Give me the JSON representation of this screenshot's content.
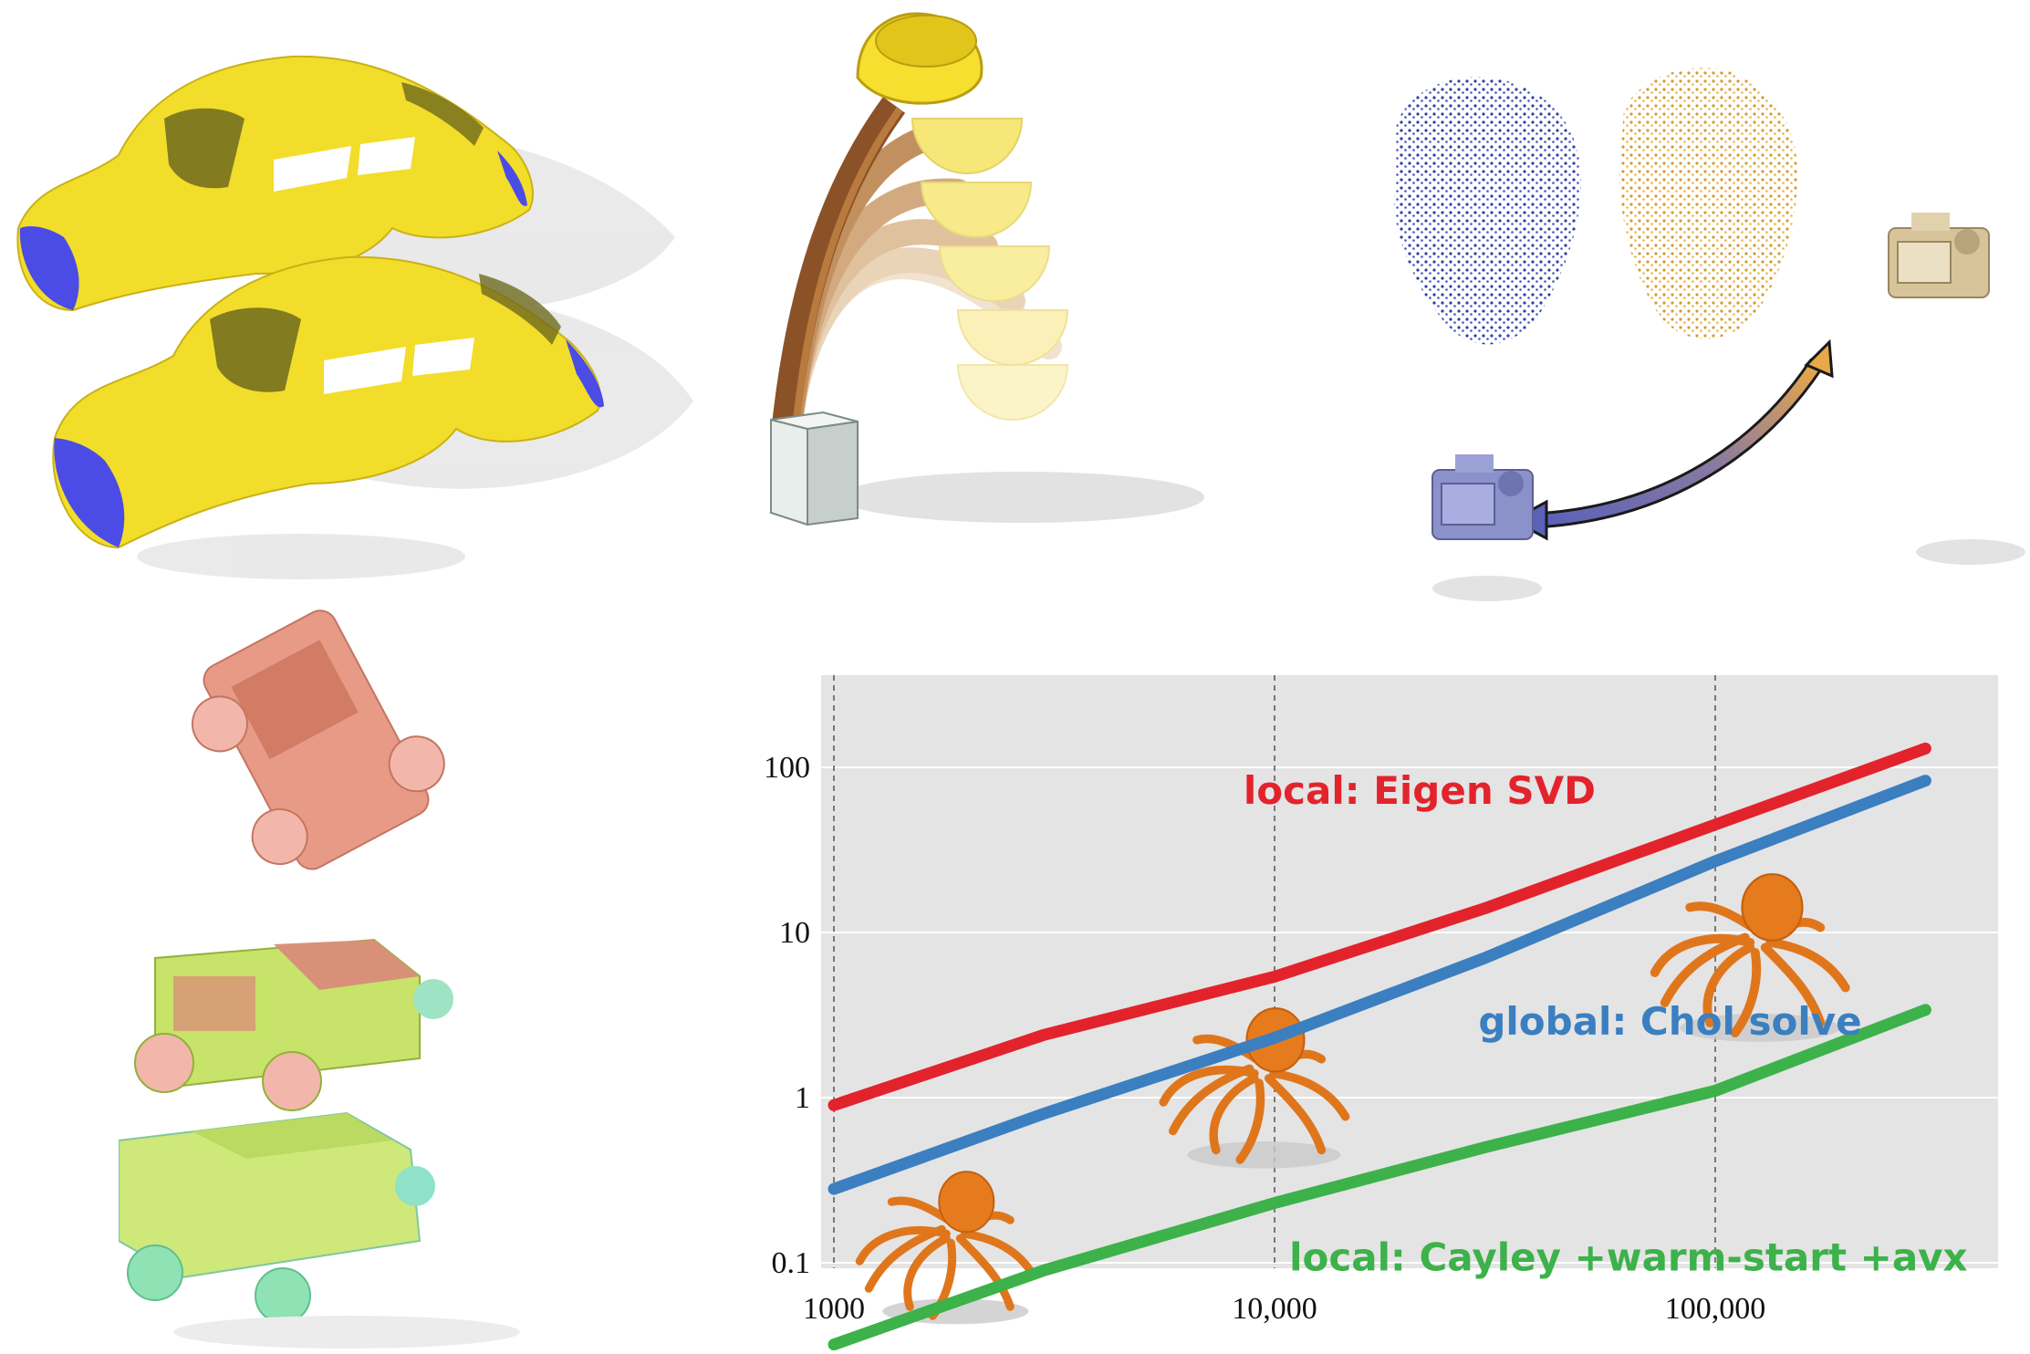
{
  "figure": {
    "panels": [
      {
        "name": "twin-car-bodies",
        "colors": [
          "#f2dd2a",
          "#4b4be6"
        ]
      },
      {
        "name": "bending-rod-with-cup",
        "colors": [
          "#8a5226",
          "#f6df2e"
        ]
      },
      {
        "name": "face-point-clouds-and-cameras",
        "colors": [
          "#2f3ea8",
          "#e2a53a"
        ]
      },
      {
        "name": "tumbling-jeeps",
        "colors": [
          "#e79a86",
          "#c7e36a",
          "#7fe1c0"
        ]
      }
    ]
  },
  "chart_data": {
    "type": "line",
    "x_scale": "log",
    "y_scale": "log",
    "xlim": [
      1000,
      300000
    ],
    "ylim": [
      0.03,
      140
    ],
    "x_ticks": [
      1000,
      10000,
      100000
    ],
    "x_tick_labels": [
      "1000",
      "10,000",
      "100,000"
    ],
    "y_ticks": [
      0.1,
      1,
      10,
      100
    ],
    "y_tick_labels": [
      "0.1",
      "1",
      "10",
      "100"
    ],
    "grid": true,
    "series": [
      {
        "name": "local: Eigen SVD",
        "color": "#e3232c",
        "x": [
          1000,
          3000,
          10000,
          30000,
          100000,
          300000
        ],
        "y": [
          0.9,
          2.4,
          5.4,
          14,
          45,
          130
        ]
      },
      {
        "name": "global: Chol solve",
        "color": "#3b7fc0",
        "x": [
          1000,
          3000,
          10000,
          30000,
          100000,
          300000
        ],
        "y": [
          0.28,
          0.8,
          2.3,
          7,
          27,
          83
        ]
      },
      {
        "name": "local: Cayley +warm-start +avx",
        "color": "#3db14a",
        "x": [
          1000,
          3000,
          10000,
          30000,
          100000,
          300000
        ],
        "y": [
          0.032,
          0.09,
          0.23,
          0.5,
          1.1,
          3.4
        ]
      }
    ]
  }
}
